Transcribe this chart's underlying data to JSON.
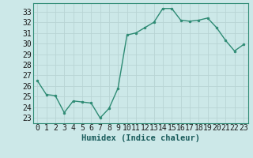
{
  "x": [
    0,
    1,
    2,
    3,
    4,
    5,
    6,
    7,
    8,
    9,
    10,
    11,
    12,
    13,
    14,
    15,
    16,
    17,
    18,
    19,
    20,
    21,
    22,
    23
  ],
  "y": [
    26.5,
    25.2,
    25.1,
    23.5,
    24.6,
    24.5,
    24.4,
    23.0,
    23.9,
    25.8,
    30.8,
    31.0,
    31.5,
    32.0,
    33.3,
    33.3,
    32.2,
    32.1,
    32.2,
    32.4,
    31.5,
    30.3,
    29.3,
    29.9
  ],
  "line_color": "#2e8b74",
  "marker": "o",
  "markersize": 2.0,
  "linewidth": 1.0,
  "xlabel": "Humidex (Indice chaleur)",
  "ylim": [
    22.5,
    33.8
  ],
  "xlim": [
    -0.5,
    23.5
  ],
  "yticks": [
    23,
    24,
    25,
    26,
    27,
    28,
    29,
    30,
    31,
    32,
    33
  ],
  "xticks": [
    0,
    1,
    2,
    3,
    4,
    5,
    6,
    7,
    8,
    9,
    10,
    11,
    12,
    13,
    14,
    15,
    16,
    17,
    18,
    19,
    20,
    21,
    22,
    23
  ],
  "bg_color": "#cce8e8",
  "grid_color": "#b8d4d4",
  "tick_label_fontsize": 7,
  "xlabel_fontsize": 7.5
}
